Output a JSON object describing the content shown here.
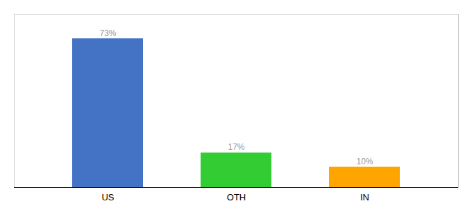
{
  "chart_data": {
    "type": "bar",
    "categories": [
      "US",
      "OTH",
      "IN"
    ],
    "values": [
      73,
      17,
      10
    ],
    "value_labels": [
      "73%",
      "17%",
      "10%"
    ],
    "colors": [
      "#4472C4",
      "#33CC33",
      "#FFA500"
    ],
    "ylim": [
      0,
      85
    ],
    "data_labels": true,
    "tick_labels": "x"
  }
}
